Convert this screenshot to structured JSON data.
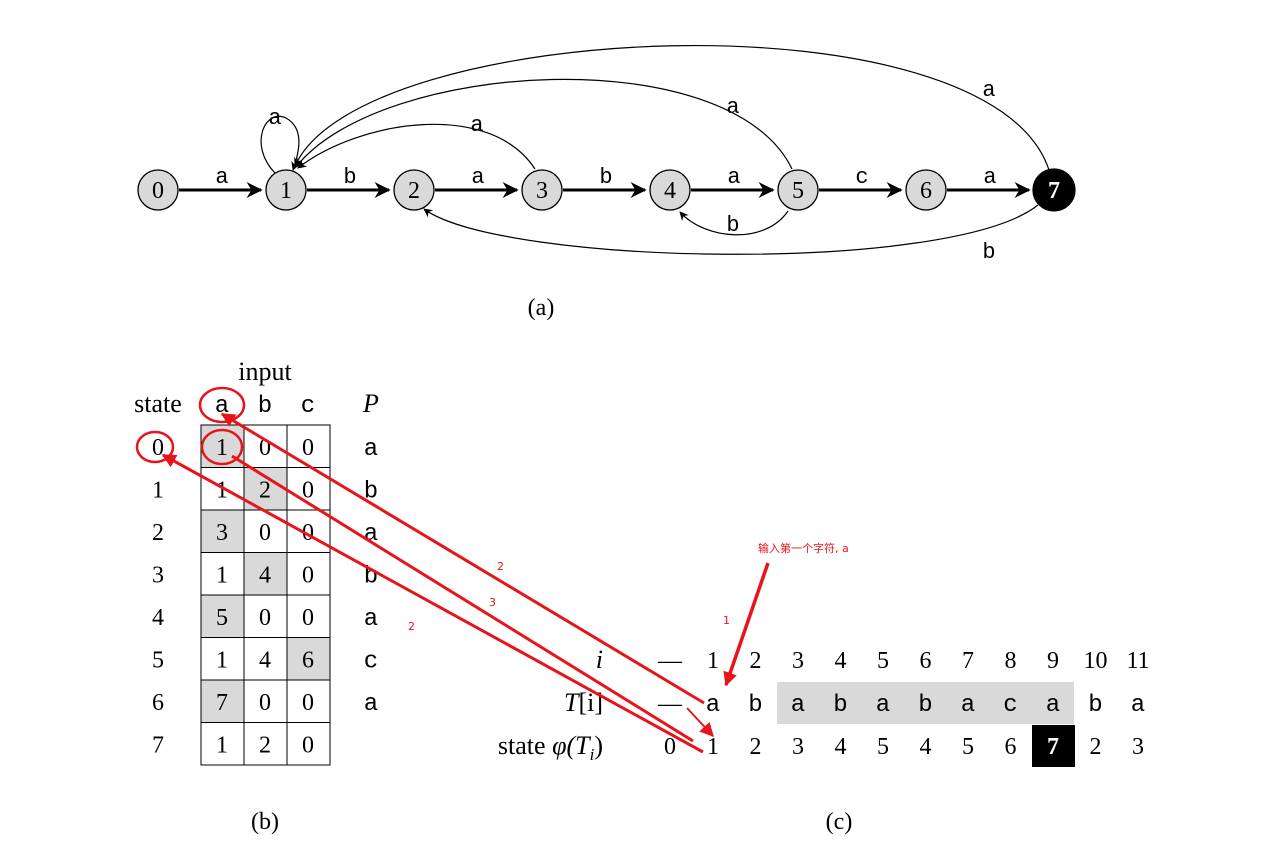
{
  "automaton": {
    "states": [
      "0",
      "1",
      "2",
      "3",
      "4",
      "5",
      "6",
      "7"
    ],
    "accept_state": "7",
    "edge_labels": {
      "e01": "a",
      "e12": "b",
      "e23": "a",
      "e34": "b",
      "e45": "a",
      "e56": "c",
      "e67": "a",
      "loop1": "a",
      "e31": "a",
      "e51": "a",
      "e71": "a",
      "e54": "b",
      "e72": "b"
    },
    "caption": "(a)"
  },
  "table": {
    "input_header": "input",
    "state_header": "state",
    "columns": [
      "a",
      "b",
      "c"
    ],
    "p_header": "P",
    "rows": [
      {
        "state": "0",
        "a": "1",
        "b": "0",
        "c": "0",
        "p": "a"
      },
      {
        "state": "1",
        "a": "1",
        "b": "2",
        "c": "0",
        "p": "b"
      },
      {
        "state": "2",
        "a": "3",
        "b": "0",
        "c": "0",
        "p": "a"
      },
      {
        "state": "3",
        "a": "1",
        "b": "4",
        "c": "0",
        "p": "b"
      },
      {
        "state": "4",
        "a": "5",
        "b": "0",
        "c": "0",
        "p": "a"
      },
      {
        "state": "5",
        "a": "1",
        "b": "4",
        "c": "6",
        "p": "c"
      },
      {
        "state": "6",
        "a": "7",
        "b": "0",
        "c": "0",
        "p": "a"
      },
      {
        "state": "7",
        "a": "1",
        "b": "2",
        "c": "0",
        "p": ""
      }
    ],
    "caption": "(b)"
  },
  "trace": {
    "i_label": "i",
    "t_label_main": "T",
    "t_label_index": "[i]",
    "state_label": "state",
    "phi_main": "φ(T",
    "phi_sub": "i",
    "phi_close": ")",
    "dash": "—",
    "indices": [
      "1",
      "2",
      "3",
      "4",
      "5",
      "6",
      "7",
      "8",
      "9",
      "10",
      "11"
    ],
    "text": [
      "a",
      "b",
      "a",
      "b",
      "a",
      "b",
      "a",
      "c",
      "a",
      "b",
      "a"
    ],
    "states": [
      "0",
      "1",
      "2",
      "3",
      "4",
      "5",
      "4",
      "5",
      "6",
      "7",
      "2",
      "3"
    ],
    "caption": "(c)"
  },
  "annotations": {
    "note": "输入第一个字符, a",
    "num1": "1",
    "num2a": "2",
    "num3": "3",
    "num2b": "2",
    "color": "#e8141b"
  }
}
